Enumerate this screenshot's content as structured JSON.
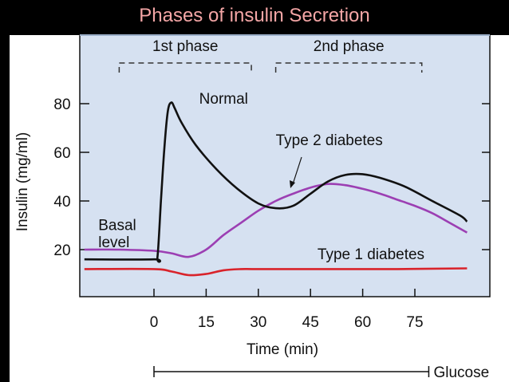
{
  "slide_title": "Phases of insulin Secretion",
  "chart_data": {
    "type": "line",
    "title": "Phases of insulin Secretion",
    "xlabel": "Time (min)",
    "ylabel": "Insulin (mg/ml)",
    "xlim": [
      -15,
      90
    ],
    "ylim": [
      0,
      90
    ],
    "x_ticks": [
      "0",
      "15",
      "30",
      "45",
      "60",
      "75"
    ],
    "y_ticks": [
      "20",
      "40",
      "60",
      "80"
    ],
    "grid": false,
    "background_color": "#d6e1f1",
    "phases": [
      {
        "label": "1st phase",
        "range": [
          -10,
          28
        ]
      },
      {
        "label": "2nd phase",
        "range": [
          35,
          77
        ]
      }
    ],
    "glucose_bar": {
      "label": "Glucose",
      "range": [
        0,
        79
      ]
    },
    "series": [
      {
        "name": "Normal",
        "color": "#111111",
        "points": [
          [
            -20,
            16
          ],
          [
            0,
            16
          ],
          [
            1,
            17
          ],
          [
            2,
            40
          ],
          [
            3,
            62
          ],
          [
            4,
            77
          ],
          [
            5,
            80.5
          ],
          [
            6,
            78
          ],
          [
            8,
            72
          ],
          [
            12,
            63
          ],
          [
            18,
            53
          ],
          [
            24,
            45
          ],
          [
            30,
            39
          ],
          [
            35,
            37
          ],
          [
            40,
            38
          ],
          [
            45,
            43
          ],
          [
            50,
            48
          ],
          [
            55,
            50.7
          ],
          [
            60,
            51
          ],
          [
            65,
            49.5
          ],
          [
            72,
            46
          ],
          [
            80,
            40
          ],
          [
            88,
            34
          ],
          [
            90,
            31.5
          ]
        ]
      },
      {
        "name": "Type 2 diabetes",
        "color": "#9c3fb3",
        "points": [
          [
            -20,
            20
          ],
          [
            -10,
            20
          ],
          [
            0,
            19.5
          ],
          [
            5,
            18.5
          ],
          [
            10,
            17
          ],
          [
            15,
            20
          ],
          [
            20,
            26
          ],
          [
            25,
            31
          ],
          [
            30,
            36
          ],
          [
            35,
            40
          ],
          [
            40,
            43
          ],
          [
            45,
            45.5
          ],
          [
            50,
            47
          ],
          [
            55,
            46.5
          ],
          [
            60,
            45
          ],
          [
            65,
            43
          ],
          [
            70,
            40.5
          ],
          [
            75,
            38
          ],
          [
            80,
            35
          ],
          [
            85,
            31
          ],
          [
            90,
            27
          ]
        ]
      },
      {
        "name": "Type 1 diabetes",
        "color": "#d9232b",
        "points": [
          [
            -20,
            12
          ],
          [
            0,
            12
          ],
          [
            5,
            11
          ],
          [
            10,
            9.5
          ],
          [
            15,
            10
          ],
          [
            20,
            11.5
          ],
          [
            25,
            12
          ],
          [
            30,
            12
          ],
          [
            50,
            12
          ],
          [
            70,
            12
          ],
          [
            90,
            12.3
          ]
        ]
      }
    ],
    "annotations": [
      {
        "text": "Normal",
        "x": 13,
        "y": 80
      },
      {
        "text": "Type 2 diabetes",
        "x": 35,
        "y": 63
      },
      {
        "text": "Type 1 diabetes",
        "x": 47,
        "y": 16
      },
      {
        "text": "Basal",
        "x": -16,
        "y": 28
      },
      {
        "text": "level",
        "x": -16,
        "y": 21
      }
    ]
  }
}
